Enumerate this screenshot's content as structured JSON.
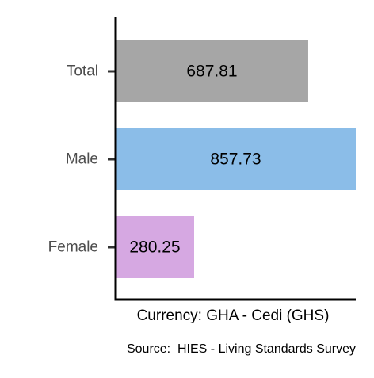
{
  "chart_data": {
    "type": "bar",
    "orientation": "horizontal",
    "categories": [
      "Total",
      "Male",
      "Female"
    ],
    "values": [
      687.81,
      857.73,
      280.25
    ],
    "value_labels": [
      "687.81",
      "857.73",
      "280.25"
    ],
    "colors": [
      "#a6a6a6",
      "#8bbde8",
      "#d6a8e2"
    ],
    "xlabel": "Currency: GHA - Cedi (GHS)",
    "ylabel": "",
    "xlim": [
      0,
      857.73
    ],
    "grid": false,
    "legend": "none",
    "caption": "Source:  HIES - Living Standards Survey"
  }
}
